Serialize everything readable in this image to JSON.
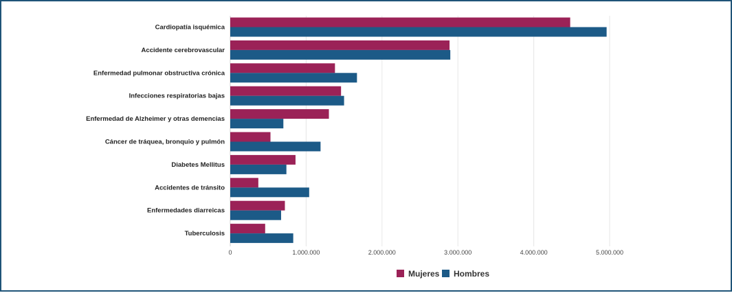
{
  "chart_data": {
    "type": "bar",
    "orientation": "horizontal",
    "title": "",
    "xlabel": "",
    "ylabel": "",
    "xlim": [
      0,
      5000000
    ],
    "ticks": [
      0,
      1000000,
      2000000,
      3000000,
      4000000,
      5000000
    ],
    "tick_labels": [
      "0",
      "1.000.000",
      "2.000.000",
      "3.000.000",
      "4.000.000",
      "5.000.000"
    ],
    "grid": true,
    "legend_position": "bottom-center",
    "categories": [
      "Cardiopatía isquémica",
      "Accidente cerebrovascular",
      "Enfermedad pulmonar obstructiva crónica",
      "Infecciones respiratorias bajas",
      "Enfermedad de Alzheimer y otras demencias",
      "Cáncer de tráquea, bronquio y pulmón",
      "Diabetes Mellitus",
      "Accidentes de tránsito",
      "Enfermedades diarreicas",
      "Tuberculosis"
    ],
    "series": [
      {
        "name": "Mujeres",
        "color": "#9b2257",
        "values": [
          4480000,
          2890000,
          1380000,
          1460000,
          1300000,
          530000,
          860000,
          370000,
          720000,
          460000
        ]
      },
      {
        "name": "Hombres",
        "color": "#1c5a87",
        "values": [
          4960000,
          2900000,
          1670000,
          1500000,
          700000,
          1190000,
          740000,
          1040000,
          670000,
          830000
        ]
      }
    ]
  }
}
